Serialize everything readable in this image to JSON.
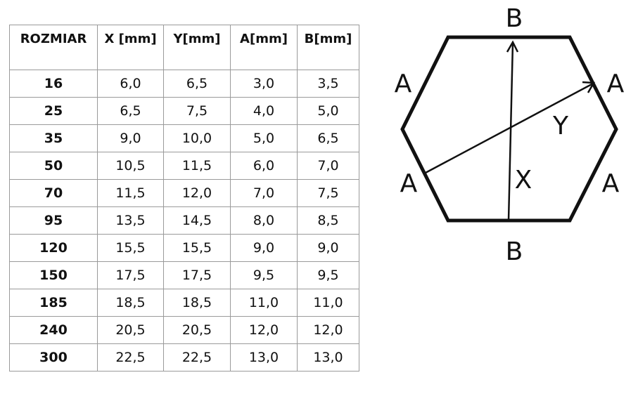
{
  "table": {
    "headers": [
      "ROZMIAR",
      "X [mm]",
      "Y[mm]",
      "A[mm]",
      "B[mm]"
    ],
    "rows": [
      [
        "16",
        "6,0",
        "6,5",
        "3,0",
        "3,5"
      ],
      [
        "25",
        "6,5",
        "7,5",
        "4,0",
        "5,0"
      ],
      [
        "35",
        "9,0",
        "10,0",
        "5,0",
        "6,5"
      ],
      [
        "50",
        "10,5",
        "11,5",
        "6,0",
        "7,0"
      ],
      [
        "70",
        "11,5",
        "12,0",
        "7,0",
        "7,5"
      ],
      [
        "95",
        "13,5",
        "14,5",
        "8,0",
        "8,5"
      ],
      [
        "120",
        "15,5",
        "15,5",
        "9,0",
        "9,0"
      ],
      [
        "150",
        "17,5",
        "17,5",
        "9,5",
        "9,5"
      ],
      [
        "185",
        "18,5",
        "18,5",
        "11,0",
        "11,0"
      ],
      [
        "240",
        "20,5",
        "20,5",
        "12,0",
        "12,0"
      ],
      [
        "300",
        "22,5",
        "22,5",
        "13,0",
        "13,0"
      ]
    ]
  },
  "diagram": {
    "label_b_top": "B",
    "label_b_bottom": "B",
    "label_a_upper_left": "A",
    "label_a_upper_right": "A",
    "label_a_lower_left": "A",
    "label_a_lower_right": "A",
    "label_x": "X",
    "label_y": "Y"
  }
}
